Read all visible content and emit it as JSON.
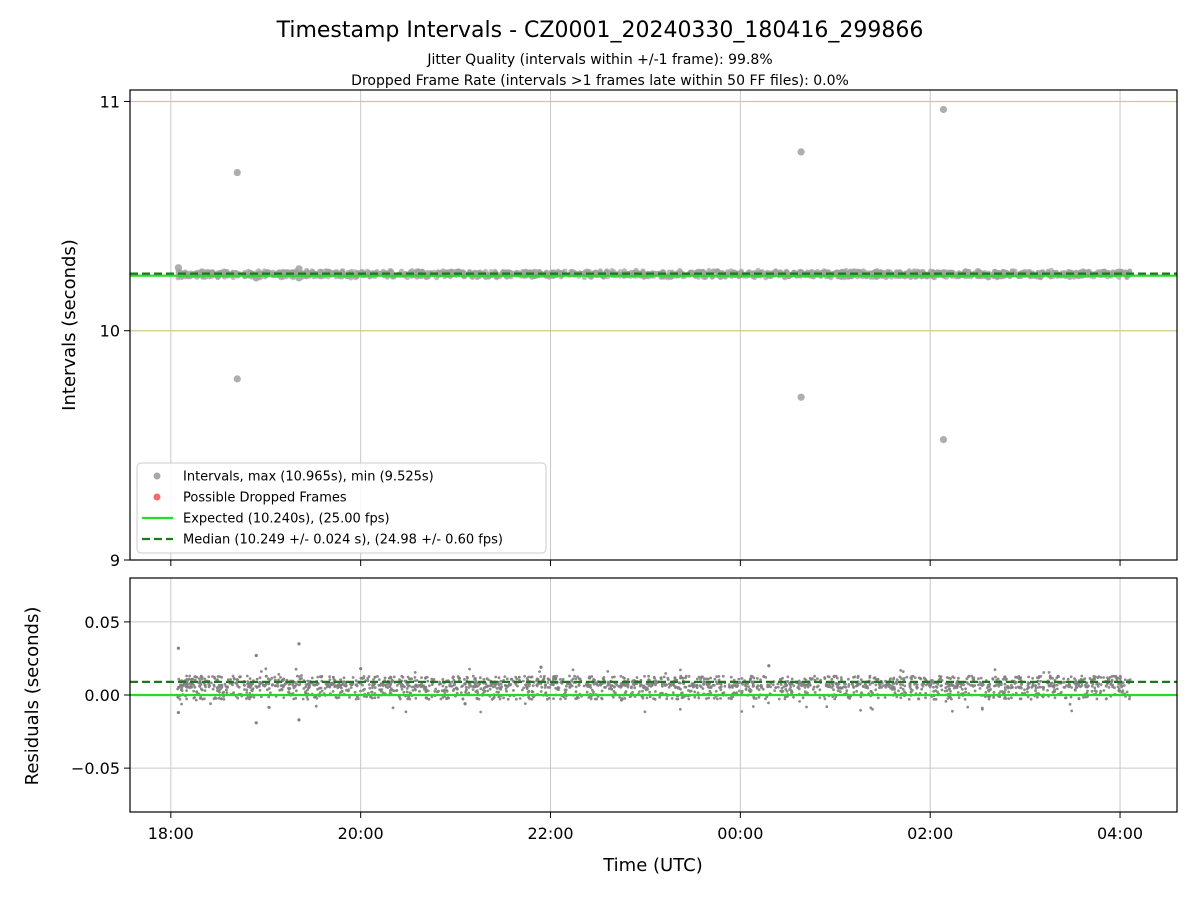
{
  "chart_data": {
    "title": "Timestamp Intervals - CZ0001_20240330_180416_299866",
    "subtitles": [
      "Jitter Quality (intervals within +/-1 frame): 99.8%",
      "Dropped Frame Rate (intervals >1 frames late within 50 FF files): 0.0%"
    ],
    "xlabel": "Time (UTC)",
    "x_ticks": [
      "18:00",
      "20:00",
      "22:00",
      "00:00",
      "02:00",
      "04:00"
    ],
    "x_tick_hours": [
      0,
      2,
      4,
      6,
      8,
      10
    ],
    "xlim_hours": [
      -0.43,
      10.6
    ],
    "data_span_hours": [
      0.07,
      10.11
    ],
    "panels": [
      {
        "name": "intervals",
        "type": "scatter",
        "ylabel": "Intervals (seconds)",
        "ylim": [
          9,
          11.05
        ],
        "y_ticks": [
          "9",
          "10",
          "11"
        ],
        "y_tick_values": [
          9,
          10,
          11
        ],
        "grid": true,
        "frame_lines": [
          10,
          11
        ],
        "expected": 10.24,
        "median": 10.249,
        "band": [
          10.22,
          10.265
        ],
        "outliers": [
          {
            "x": 0.7,
            "y": 10.69
          },
          {
            "x": 0.7,
            "y": 9.79
          },
          {
            "x": 6.64,
            "y": 10.78
          },
          {
            "x": 6.64,
            "y": 9.71
          },
          {
            "x": 8.14,
            "y": 10.965
          },
          {
            "x": 8.14,
            "y": 9.525
          },
          {
            "x": 0.9,
            "y": 10.23
          },
          {
            "x": 1.35,
            "y": 10.27
          },
          {
            "x": 1.35,
            "y": 10.23
          },
          {
            "x": 0.08,
            "y": 10.275
          }
        ],
        "legend": {
          "position": "lower-left",
          "entries": [
            {
              "label": "Intervals, max (10.965s), min (9.525s)",
              "marker": "dot",
              "color": "#999999"
            },
            {
              "label": "Possible Dropped Frames",
              "marker": "dot",
              "color": "#f05050"
            },
            {
              "label": "Expected (10.240s), (25.00 fps)",
              "marker": "line",
              "color": "#22dd22"
            },
            {
              "label": "Median (10.249 +/- 0.024 s), (24.98 +/- 0.60 fps)",
              "marker": "dashed",
              "color": "#1a7a1a"
            }
          ]
        }
      },
      {
        "name": "residuals",
        "type": "scatter",
        "ylabel": "Residuals (seconds)",
        "ylim": [
          -0.08,
          0.08
        ],
        "y_ticks": [
          "−0.05",
          "0.00",
          "0.05"
        ],
        "y_tick_values": [
          -0.05,
          0,
          0.05
        ],
        "grid": true,
        "expected": 0.0,
        "median": 0.009,
        "band": [
          -0.004,
          0.014
        ],
        "outliers": [
          {
            "x": 0.08,
            "y": 0.032
          },
          {
            "x": 0.08,
            "y": -0.012
          },
          {
            "x": 0.9,
            "y": 0.027
          },
          {
            "x": 0.9,
            "y": -0.019
          },
          {
            "x": 1.35,
            "y": 0.035
          },
          {
            "x": 1.35,
            "y": -0.017
          },
          {
            "x": 3.9,
            "y": 0.019
          },
          {
            "x": 6.3,
            "y": 0.02
          },
          {
            "x": 3.1,
            "y": -0.006
          },
          {
            "x": 2.0,
            "y": 0.018
          }
        ]
      }
    ]
  },
  "colors": {
    "points": "#808080",
    "points_top": "#a0a0a0",
    "expected": "#22dd22",
    "median": "#1a7a1a",
    "frame_line": "#d4c88a",
    "grid": "#c8c8c8"
  }
}
